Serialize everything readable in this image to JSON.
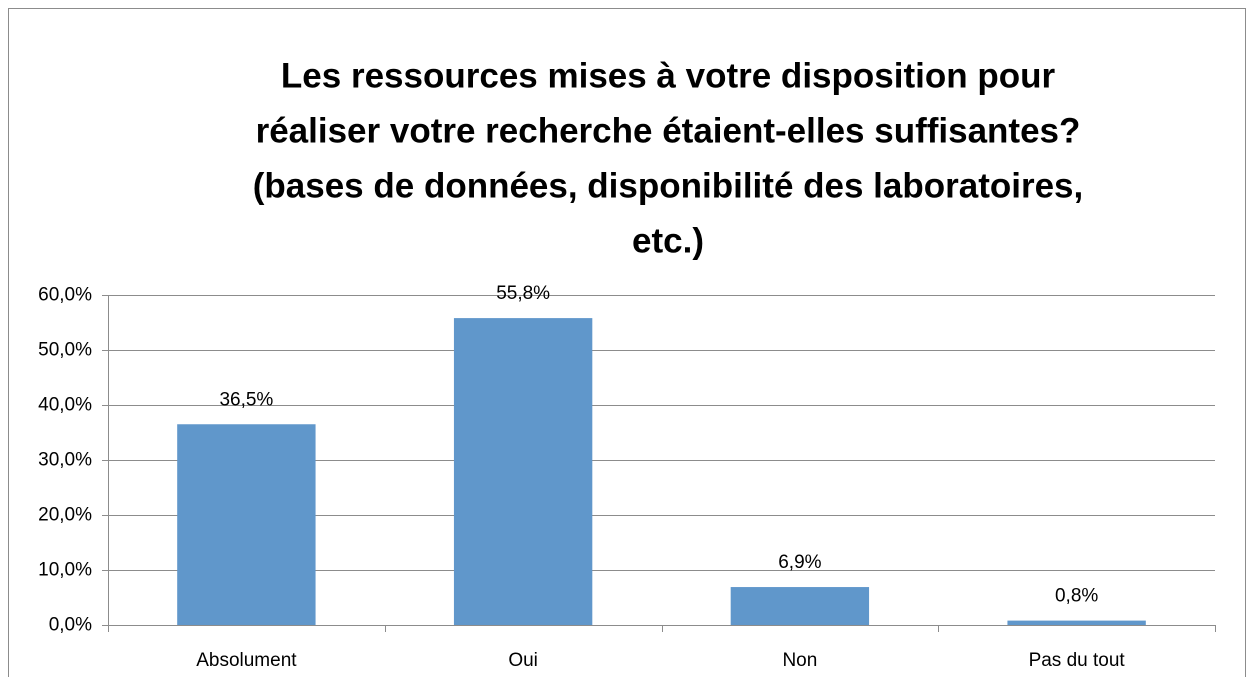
{
  "chart_data": {
    "type": "bar",
    "title": [
      "Les ressources mises à votre disposition pour",
      "réaliser votre recherche étaient-elles suffisantes?",
      "(bases de données, disponibilité des laboratoires,",
      "etc.)"
    ],
    "categories": [
      "Absolument",
      "Oui",
      "Non",
      "Pas du tout"
    ],
    "values": [
      36.5,
      55.8,
      6.9,
      0.8
    ],
    "value_labels": [
      "36,5%",
      "55,8%",
      "6,9%",
      "0,8%"
    ],
    "color": "#6097cb",
    "ylim": [
      0,
      60
    ],
    "yticks": [
      {
        "value": 0,
        "label": "0,0%"
      },
      {
        "value": 10,
        "label": "10,0%"
      },
      {
        "value": 20,
        "label": "20,0%"
      },
      {
        "value": 30,
        "label": "30,0%"
      },
      {
        "value": 40,
        "label": "40,0%"
      },
      {
        "value": 50,
        "label": "50,0%"
      },
      {
        "value": 60,
        "label": "60,0%"
      }
    ],
    "grid": true
  }
}
